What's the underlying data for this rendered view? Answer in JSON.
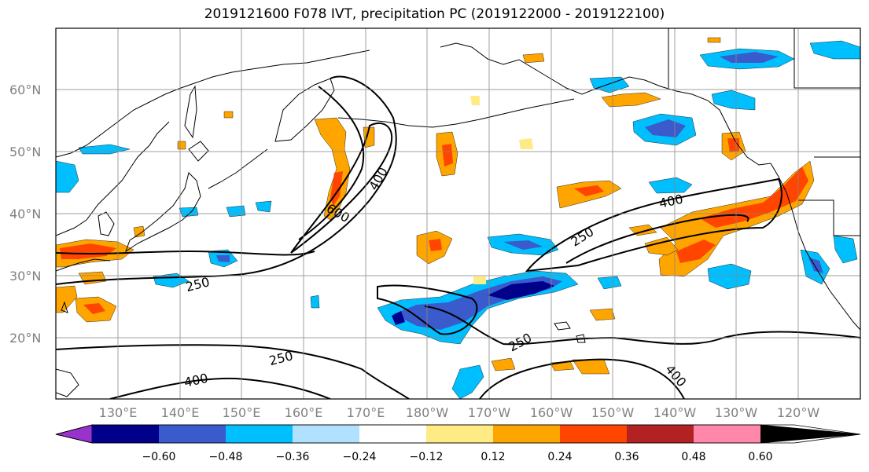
{
  "title": "2019121600 F078 IVT, precipitation PC (2019122000 - 2019122100)",
  "lat_labels": [
    "60°N",
    "50°N",
    "40°N",
    "30°N",
    "20°N"
  ],
  "lon_labels": [
    "130°E",
    "140°E",
    "150°E",
    "160°E",
    "170°E",
    "180°W",
    "170°W",
    "160°W",
    "150°W",
    "140°W",
    "130°W",
    "120°W"
  ],
  "contour_labels": {
    "c400_a": "400",
    "c600": "600",
    "c250_a": "250",
    "c400_b": "400",
    "c250_b": "250",
    "c250_c": "250",
    "c250_d": "250",
    "c400_c": "400",
    "c400_d": "400"
  },
  "colorbar": {
    "ticks": [
      "−0.60",
      "−0.48",
      "−0.36",
      "−0.24",
      "−0.12",
      "0.12",
      "0.24",
      "0.36",
      "0.48",
      "0.60"
    ],
    "colors": [
      "#9932cc",
      "#00008b",
      "#3a5bcc",
      "#00bfff",
      "#b0e2ff",
      "#ffffff",
      "#ffeb85",
      "#ffa500",
      "#ff4500",
      "#b22222",
      "#ff88aa"
    ]
  }
}
